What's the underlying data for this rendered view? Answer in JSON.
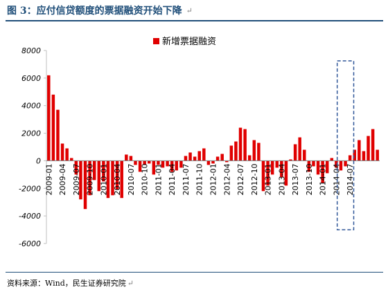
{
  "title": "图 3：应付信贷额度的票据融资开始下降",
  "paragraph_mark": "↵",
  "source": "资料来源：Wind，民生证券研究院",
  "colors": {
    "bar": "#e00000",
    "title": "#1f4e79",
    "highlight": "#2e5597"
  },
  "chart_data": {
    "type": "bar",
    "series": [
      {
        "name": "新增票据融资",
        "values": [
          6200,
          4800,
          3700,
          1250,
          900,
          200,
          -1000,
          -2800,
          -3500,
          -2500,
          -1400,
          -2200,
          -1500,
          -2700,
          -2500,
          -2100,
          -2700,
          450,
          350,
          -300,
          -800,
          -300,
          -200,
          -1000,
          -300,
          -500,
          -400,
          -800,
          -700,
          -500,
          350,
          600,
          300,
          700,
          900,
          -300,
          -200,
          300,
          500,
          -100,
          1100,
          1400,
          2400,
          2300,
          400,
          1500,
          1300,
          -2200,
          -1800,
          -1000,
          -500,
          -1200,
          -1800,
          100,
          1200,
          1700,
          800,
          -800,
          -400,
          -1000,
          -1600,
          -900,
          200,
          -500,
          -700,
          -400,
          400,
          800,
          1500,
          700,
          1800,
          2300,
          800
        ]
      }
    ],
    "x_start": "2009-01",
    "x_interval_months": 1,
    "x_tick_labels": [
      "2009-01",
      "2009-04",
      "2009-07",
      "2009-10",
      "2010-01",
      "2010-04",
      "2010-07",
      "2010-10",
      "2011-01",
      "2011-04",
      "2011-07",
      "2011-10",
      "2012-01",
      "2012-04",
      "2012-07",
      "2012-10",
      "2013-01",
      "2013-04",
      "2013-07",
      "2013-10",
      "2014-01",
      "2014-04",
      "2014-07"
    ],
    "y_tick_labels": [
      "8000",
      "6000",
      "4000",
      "2000",
      "0",
      "-2000",
      "-4000",
      "-6000"
    ],
    "ylim": [
      -6000,
      8000
    ],
    "legend_position": "top-center",
    "highlight": {
      "from": "2014-05",
      "to": "2014-07"
    }
  }
}
